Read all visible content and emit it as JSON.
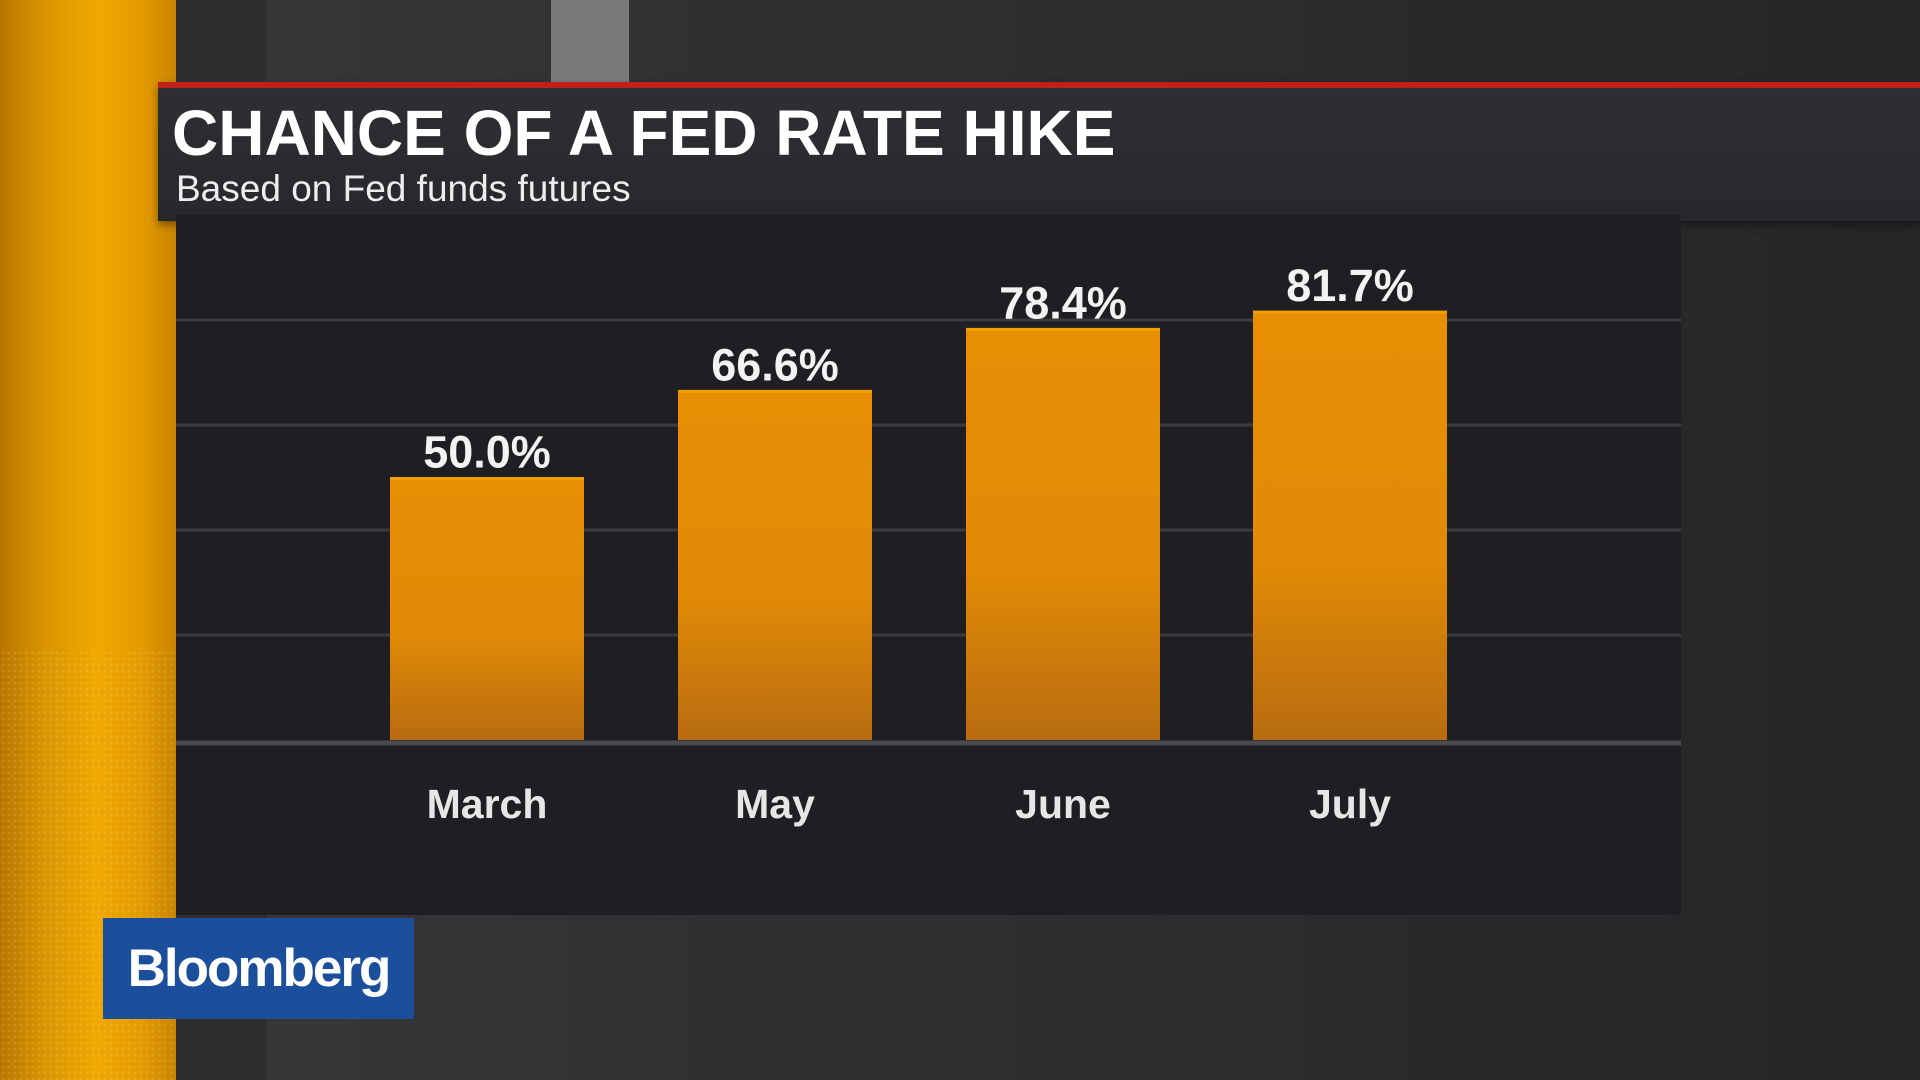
{
  "chart_data": {
    "type": "bar",
    "title": "CHANCE OF A FED RATE HIKE",
    "subtitle": "Based on Fed funds futures",
    "categories": [
      "March",
      "May",
      "June",
      "July"
    ],
    "values": [
      50.0,
      66.6,
      78.4,
      81.7
    ],
    "data_labels": [
      "50.0%",
      "66.6%",
      "78.4%",
      "81.7%"
    ],
    "ylim": [
      0,
      100
    ],
    "grid": true,
    "colors": {
      "bar": "#e88e05",
      "bar_bottom": "#b86c10",
      "bar_top_edge": "#f2a000",
      "accent": "#c0201a"
    }
  },
  "brand": {
    "logo_text": "Bloomberg",
    "logo_color": "#1b4f9c"
  }
}
